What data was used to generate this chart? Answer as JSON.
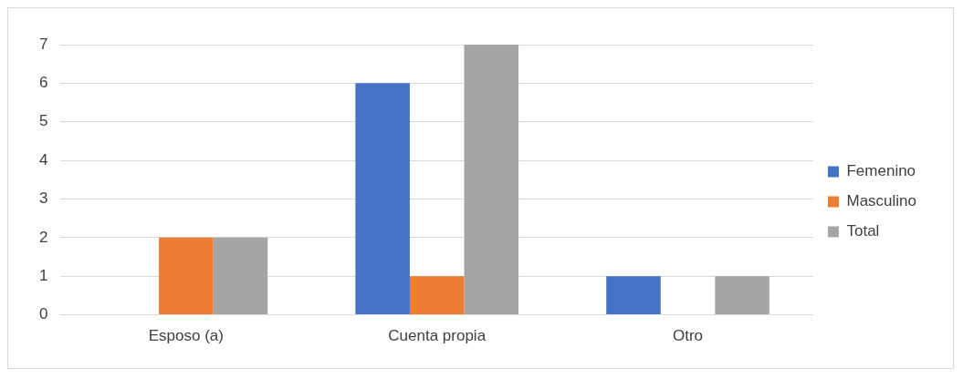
{
  "chart_data": {
    "type": "bar",
    "categories": [
      "Esposo (a)",
      "Cuenta propia",
      "Otro"
    ],
    "series": [
      {
        "name": "Femenino",
        "color": "#4472c4",
        "values": [
          0,
          6,
          1
        ]
      },
      {
        "name": "Masculino",
        "color": "#ed7d31",
        "values": [
          2,
          1,
          0
        ]
      },
      {
        "name": "Total",
        "color": "#a5a5a5",
        "values": [
          2,
          7,
          1
        ]
      }
    ],
    "ylim": [
      0,
      7
    ],
    "yticks": [
      0,
      1,
      2,
      3,
      4,
      5,
      6,
      7
    ],
    "grid": "y",
    "legend": "right"
  }
}
